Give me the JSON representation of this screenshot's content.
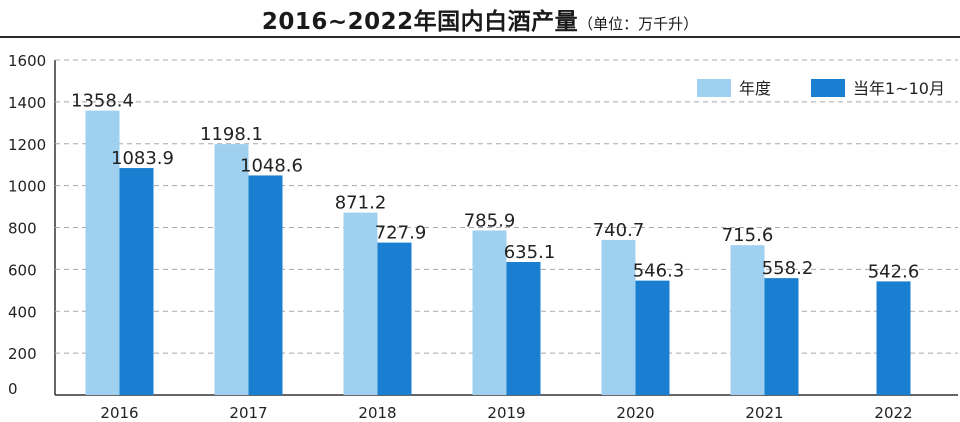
{
  "chart_data": {
    "type": "bar",
    "title": "2016~2022年国内白酒产量",
    "unit_note": "（单位：万千升）",
    "categories": [
      "2016",
      "2017",
      "2018",
      "2019",
      "2020",
      "2021",
      "2022"
    ],
    "series": [
      {
        "name": "年度",
        "color": "#9fd0ef",
        "values": [
          1358.4,
          1198.1,
          871.2,
          785.9,
          740.7,
          715.6,
          null
        ],
        "labels": [
          "1358.4",
          "1198.1",
          "871.2",
          "785.9",
          "740.7",
          "715.6",
          ""
        ]
      },
      {
        "name": "当年1~10月",
        "color": "#1a7fd0",
        "values": [
          1083.9,
          1048.6,
          727.9,
          635.1,
          546.3,
          558.2,
          542.6
        ],
        "labels": [
          "1083.9",
          "1048.6",
          "727.9",
          "635.1",
          "546.3",
          "558.2",
          "542.6"
        ]
      }
    ],
    "y_ticks": [
      "0",
      "200",
      "400",
      "600",
      "800",
      "1000",
      "1200",
      "1400",
      "1600"
    ],
    "ylim": [
      0,
      1600
    ],
    "grid": true,
    "legend_position": "top-right"
  }
}
